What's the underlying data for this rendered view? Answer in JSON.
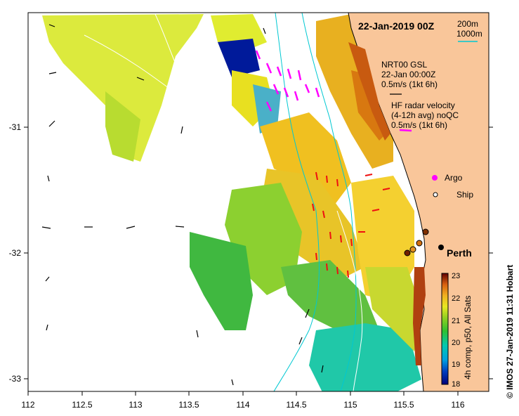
{
  "title": "22-Jan-2019 00Z",
  "depth_legend": {
    "line1": "200m",
    "line2": "1000m"
  },
  "vector_legend": {
    "gsl_title": "NRT00 GSL",
    "gsl_time": "22-Jan 00:00Z",
    "gsl_scale": "0.5m/s (1kt 6h)",
    "hf_title": "HF radar velocity",
    "hf_sub": "(4-12h avg) noQC",
    "hf_scale": "0.5m/s (1kt 6h)"
  },
  "markers": {
    "argo": "Argo",
    "ship": "Ship"
  },
  "city": "Perth",
  "x_ticks": [
    "112",
    "112.5",
    "113",
    "113.5",
    "114",
    "114.5",
    "115",
    "115.5",
    "116"
  ],
  "y_ticks": [
    "-31",
    "-32",
    "-33"
  ],
  "colorbar": {
    "labels": [
      "23",
      "22",
      "21",
      "20",
      "19",
      "18"
    ],
    "caption": "4h comp, p50, All Sats"
  },
  "credit": "© IMOS 27-Jan-2019 11:31 Hobart",
  "colors": {
    "land": "#f9c69a",
    "isobath": "#00c8d2",
    "hf_arrow": "#ff00ff",
    "argo": "#ff00ff"
  }
}
